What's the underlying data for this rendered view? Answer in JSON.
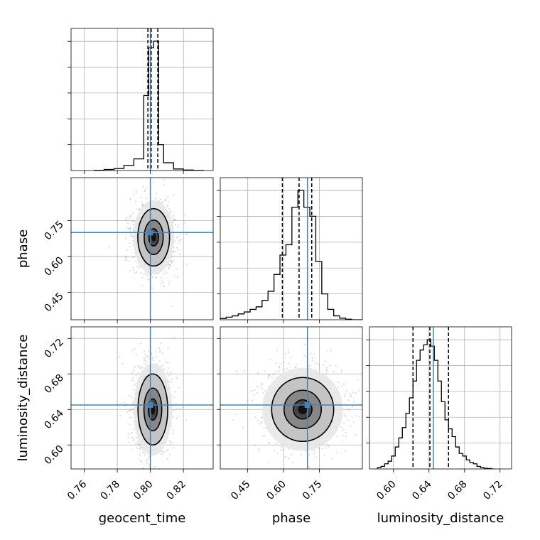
{
  "chart_data": {
    "type": "corner",
    "parameters": [
      "geocent_time",
      "phase",
      "luminosity_distance"
    ],
    "xlabels": [
      "geocent_time",
      "phase",
      "luminosity_distance"
    ],
    "ylabels": [
      "",
      "phase",
      "luminosity_distance"
    ],
    "ranges": {
      "geocent_time": [
        0.752,
        0.838
      ],
      "phase": [
        0.335,
        0.93
      ],
      "luminosity_distance": [
        0.573,
        0.733
      ]
    },
    "ticks": {
      "geocent_time": [
        0.76,
        0.78,
        0.8,
        0.82
      ],
      "phase": [
        0.45,
        0.6,
        0.75
      ],
      "luminosity_distance": [
        0.6,
        0.64,
        0.68,
        0.72
      ]
    },
    "tick_labels": {
      "geocent_time": [
        "0.76",
        "0.78",
        "0.80",
        "0.82"
      ],
      "phase": [
        "0.45",
        "0.60",
        "0.75"
      ],
      "luminosity_distance": [
        "0.60",
        "0.64",
        "0.68",
        "0.72"
      ]
    },
    "truths": {
      "geocent_time": 0.8,
      "phase": 0.7,
      "luminosity_distance": 0.645
    },
    "quantiles": {
      "geocent_time": [
        0.7985,
        0.8005,
        0.8045
      ],
      "phase": [
        0.595,
        0.665,
        0.718
      ],
      "luminosity_distance": [
        0.622,
        0.641,
        0.662
      ]
    },
    "histograms": {
      "geocent_time": {
        "edges": [
          0.766,
          0.772,
          0.778,
          0.784,
          0.79,
          0.796,
          0.799,
          0.802,
          0.805,
          0.808,
          0.814,
          0.82,
          0.826,
          0.832
        ],
        "heights": [
          0.002,
          0.008,
          0.015,
          0.04,
          0.09,
          0.58,
          0.95,
          1.0,
          0.2,
          0.06,
          0.012,
          0.004,
          0.001
        ]
      },
      "phase": {
        "edges": [
          0.335,
          0.36,
          0.385,
          0.41,
          0.435,
          0.46,
          0.485,
          0.51,
          0.535,
          0.56,
          0.585,
          0.61,
          0.635,
          0.66,
          0.685,
          0.71,
          0.735,
          0.76,
          0.785,
          0.81,
          0.835,
          0.86,
          0.885,
          0.93
        ],
        "heights": [
          0.01,
          0.02,
          0.03,
          0.045,
          0.06,
          0.08,
          0.1,
          0.15,
          0.22,
          0.35,
          0.5,
          0.58,
          0.87,
          1.0,
          0.87,
          0.8,
          0.45,
          0.2,
          0.08,
          0.03,
          0.012,
          0.004,
          0.0
        ]
      },
      "luminosity_distance": {
        "edges": [
          0.582,
          0.586,
          0.59,
          0.594,
          0.598,
          0.602,
          0.606,
          0.61,
          0.614,
          0.618,
          0.622,
          0.626,
          0.63,
          0.634,
          0.638,
          0.642,
          0.646,
          0.65,
          0.654,
          0.658,
          0.662,
          0.666,
          0.67,
          0.674,
          0.678,
          0.682,
          0.686,
          0.69,
          0.694,
          0.698,
          0.702,
          0.706,
          0.71,
          0.714
        ],
        "heights": [
          0.01,
          0.02,
          0.04,
          0.06,
          0.1,
          0.17,
          0.24,
          0.32,
          0.43,
          0.55,
          0.68,
          0.84,
          0.92,
          0.96,
          1.0,
          0.95,
          0.84,
          0.68,
          0.52,
          0.38,
          0.31,
          0.25,
          0.17,
          0.12,
          0.1,
          0.07,
          0.05,
          0.04,
          0.02,
          0.01,
          0.005,
          0.003,
          0.0
        ]
      }
    },
    "density": {
      "phase_vs_geocent_time": {
        "x": "geocent_time",
        "y": "phase",
        "center": [
          0.802,
          0.68
        ],
        "sigma": [
          0.0048,
          0.06
        ],
        "levels": [
          0.6,
          1.2,
          2.0
        ]
      },
      "luminosity_distance_vs_geocent_time": {
        "x": "geocent_time",
        "y": "luminosity_distance",
        "center": [
          0.8015,
          0.64
        ],
        "sigma": [
          0.0045,
          0.02
        ],
        "levels": [
          0.6,
          1.2,
          2.0
        ]
      },
      "luminosity_distance_vs_phase": {
        "x": "phase",
        "y": "luminosity_distance",
        "center": [
          0.68,
          0.64
        ],
        "sigma": [
          0.065,
          0.018
        ],
        "levels": [
          0.6,
          1.2,
          2.0
        ]
      }
    },
    "colors": {
      "truth": "#4682b4",
      "histogram": "#000000",
      "quantile": "#000000",
      "grid": "#b0b0b0",
      "scatter": "#8a8a8a"
    },
    "grid": true
  }
}
